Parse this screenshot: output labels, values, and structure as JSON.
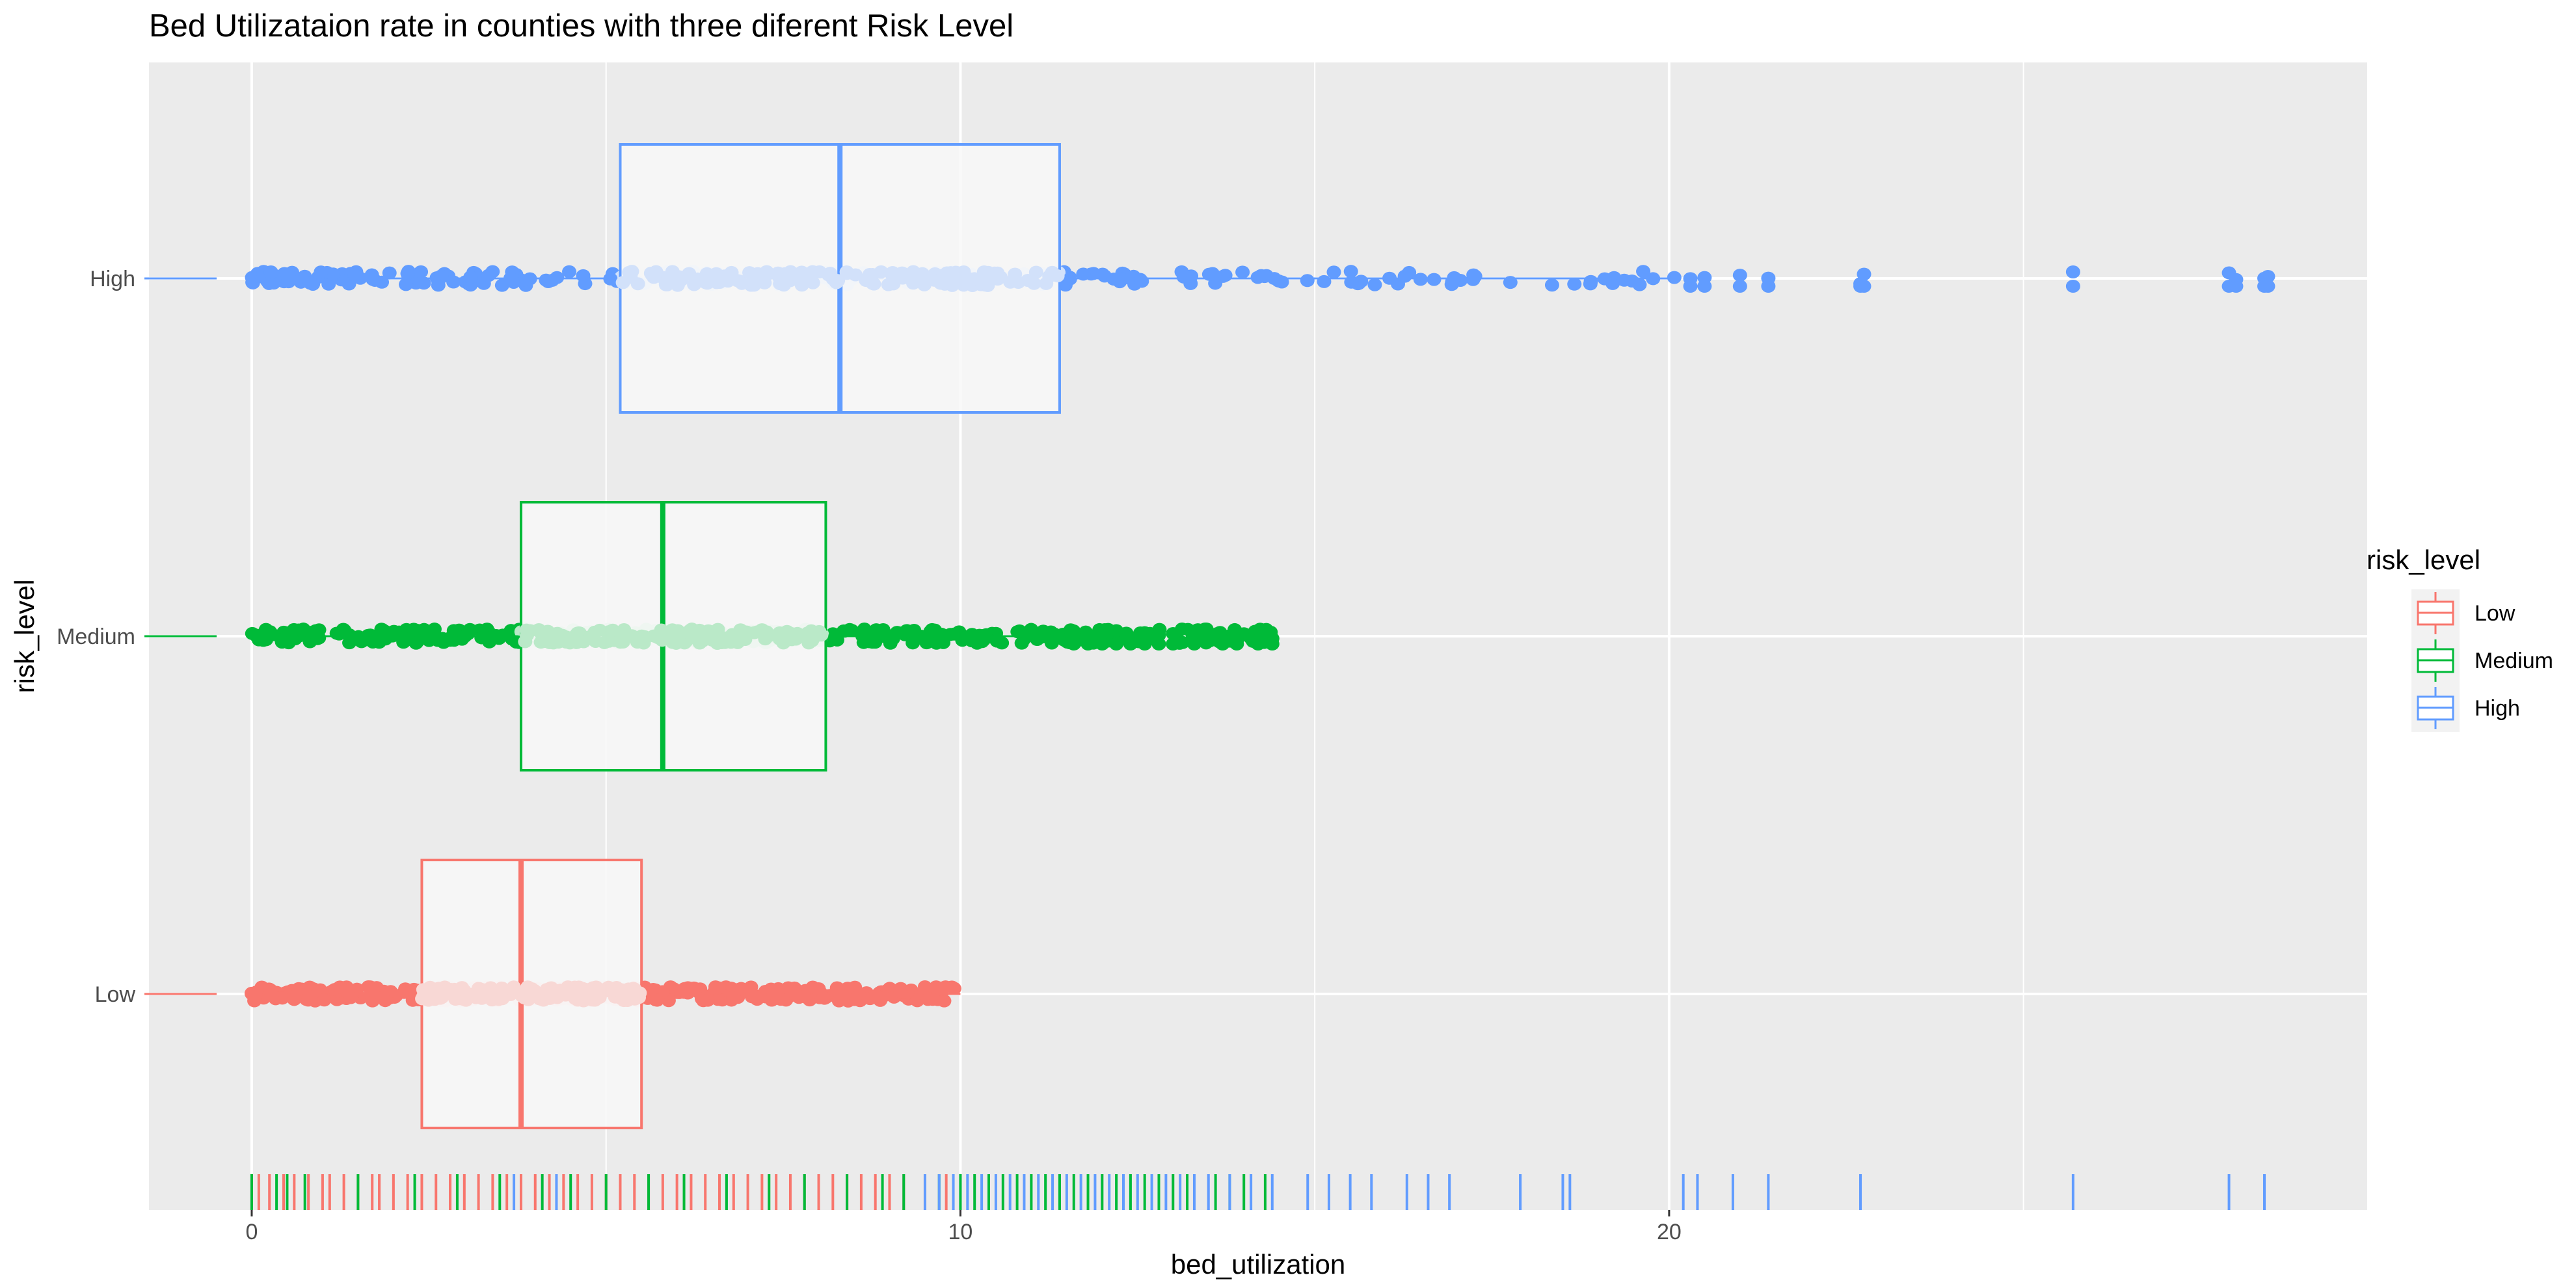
{
  "chart_data": {
    "type": "boxplot",
    "title": "Bed Utilizataion rate in counties with three diferent Risk Level",
    "xlabel": "bed_utilization",
    "ylabel": "risk_level",
    "x_ticks": [
      0,
      10,
      20
    ],
    "x_range": [
      -1.45,
      29.85
    ],
    "categories": [
      "Low",
      "Medium",
      "High"
    ],
    "legend": {
      "title": "risk_level",
      "position": "right",
      "entries": [
        "Low",
        "Medium",
        "High"
      ]
    },
    "grid": true,
    "colors": {
      "Low": "#F8766D",
      "Medium": "#00BA38",
      "High": "#619CFF",
      "panel": "#EBEBEB",
      "box_fill": "#F8F8F8",
      "grid": "#FFFFFF"
    },
    "series": [
      {
        "name": "Low",
        "min": 0,
        "q1": 2.4,
        "median": 3.8,
        "q3": 5.5,
        "max": 10.0,
        "outliers": [],
        "rug": [
          0.0,
          0.1,
          0.25,
          0.45,
          0.6,
          0.8,
          1.0,
          1.1,
          1.3,
          1.5,
          1.7,
          1.8,
          2.0,
          2.2,
          2.4,
          2.6,
          2.8,
          3.0,
          3.2,
          3.4,
          3.6,
          3.8,
          4.0,
          4.2,
          4.4,
          4.6,
          4.8,
          5.0,
          5.2,
          5.4,
          5.6,
          5.8,
          6.0,
          6.2,
          6.4,
          6.6,
          6.8,
          7.0,
          7.2,
          7.4,
          7.6,
          7.8,
          8.0,
          8.2,
          8.4,
          8.6,
          8.8,
          9.0,
          9.2,
          9.5,
          9.8
        ]
      },
      {
        "name": "Medium",
        "min": 0,
        "q1": 3.8,
        "median": 5.8,
        "q3": 8.1,
        "max": 11.5,
        "outliers": [
          11.6,
          11.8,
          12.0,
          12.2,
          12.4,
          12.6,
          12.8,
          13.0,
          13.3,
          13.7,
          13.9,
          14.2,
          14.4
        ],
        "rug": [
          0.0,
          0.35,
          0.5,
          0.75,
          1.5,
          2.3,
          2.9,
          3.5,
          4.1,
          4.5,
          5.0,
          5.6,
          6.1,
          6.7,
          7.3,
          7.8,
          8.4,
          8.9,
          9.2,
          9.7,
          10.0,
          10.2,
          10.4,
          10.6,
          10.8,
          11.0,
          11.2,
          11.4,
          11.6,
          11.8,
          12.0,
          12.2,
          12.4,
          12.6,
          12.8,
          13.0,
          13.2,
          13.6,
          13.8,
          14.0,
          14.3
        ]
      },
      {
        "name": "High",
        "min": 0,
        "q1": 5.2,
        "median": 8.3,
        "q3": 11.4,
        "max": 20.1,
        "outliers": [
          20.3,
          20.5,
          21.0,
          21.4,
          22.7,
          22.75,
          25.7,
          27.9,
          28.0,
          28.4,
          28.45
        ],
        "rug": [
          3.7,
          4.3,
          9.5,
          9.7,
          9.9,
          10.1,
          10.3,
          10.5,
          10.7,
          10.9,
          11.1,
          11.3,
          11.5,
          11.7,
          11.9,
          12.1,
          12.3,
          12.5,
          12.7,
          12.9,
          13.1,
          13.3,
          13.5,
          13.8,
          14.1,
          14.4,
          14.9,
          15.2,
          15.5,
          15.8,
          16.3,
          16.6,
          16.9,
          17.9,
          18.5,
          18.6,
          20.2,
          20.4,
          20.9,
          21.4,
          22.7,
          25.7,
          27.9,
          28.4
        ]
      }
    ]
  }
}
